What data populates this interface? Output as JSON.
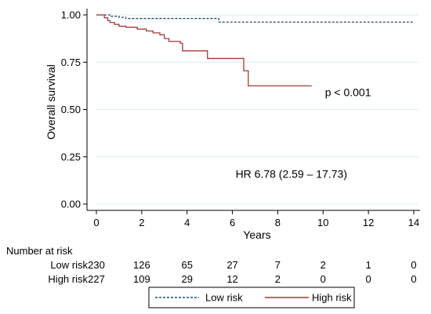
{
  "chart_data": {
    "type": "line",
    "step": true,
    "title": "",
    "xlabel": "Years",
    "ylabel": "Overall survival",
    "xlim": [
      0,
      14
    ],
    "ylim": [
      0,
      1
    ],
    "xticks": [
      "0",
      "2",
      "4",
      "6",
      "8",
      "10",
      "12",
      "14"
    ],
    "xtick_values": [
      0,
      2,
      4,
      6,
      8,
      10,
      12,
      14
    ],
    "yticks": [
      "0.00",
      "0.25",
      "0.50",
      "0.75",
      "1.00"
    ],
    "ytick_values": [
      0,
      0.25,
      0.5,
      0.75,
      1.0
    ],
    "grid": true,
    "series": [
      {
        "name": "Low risk",
        "color": "#1f4e79",
        "dash": true,
        "points": [
          [
            0,
            1.0
          ],
          [
            0.5,
            1.0
          ],
          [
            0.6,
            0.993
          ],
          [
            1.0,
            0.987
          ],
          [
            1.3,
            0.981
          ],
          [
            5.3,
            0.981
          ],
          [
            5.4,
            0.962
          ],
          [
            14,
            0.962
          ]
        ]
      },
      {
        "name": "High risk",
        "color": "#a33a3a",
        "dash": false,
        "points": [
          [
            0,
            1.0
          ],
          [
            0.35,
            0.985
          ],
          [
            0.5,
            0.97
          ],
          [
            0.6,
            0.96
          ],
          [
            0.8,
            0.95
          ],
          [
            1.0,
            0.94
          ],
          [
            1.3,
            0.935
          ],
          [
            1.8,
            0.925
          ],
          [
            2.2,
            0.915
          ],
          [
            2.5,
            0.905
          ],
          [
            2.8,
            0.895
          ],
          [
            3.0,
            0.875
          ],
          [
            3.2,
            0.86
          ],
          [
            3.7,
            0.85
          ],
          [
            3.8,
            0.81
          ],
          [
            4.9,
            0.81
          ],
          [
            4.9,
            0.77
          ],
          [
            6.5,
            0.77
          ],
          [
            6.5,
            0.705
          ],
          [
            6.7,
            0.705
          ],
          [
            6.7,
            0.625
          ],
          [
            9.5,
            0.625
          ]
        ]
      }
    ],
    "annotations": [
      {
        "text": "p < 0.001",
        "x": 11.1,
        "y": 0.57
      },
      {
        "text": "HR 6.78 (2.59 – 17.73)",
        "x": 8.6,
        "y": 0.14
      }
    ],
    "risk_table": {
      "title": "Number at risk",
      "times": [
        0,
        2,
        4,
        6,
        8,
        10,
        12,
        14
      ],
      "rows": [
        {
          "label": "Low risk",
          "values": [
            "230",
            "126",
            "65",
            "27",
            "7",
            "2",
            "1",
            "0"
          ]
        },
        {
          "label": "High risk",
          "values": [
            "227",
            "109",
            "29",
            "12",
            "2",
            "0",
            "0",
            "0"
          ]
        }
      ]
    },
    "legend": {
      "placement": "bottom",
      "entries": [
        {
          "label": "Low risk",
          "color": "#1f4e79",
          "dash": true
        },
        {
          "label": "High risk",
          "color": "#a33a3a",
          "dash": false
        }
      ]
    }
  }
}
